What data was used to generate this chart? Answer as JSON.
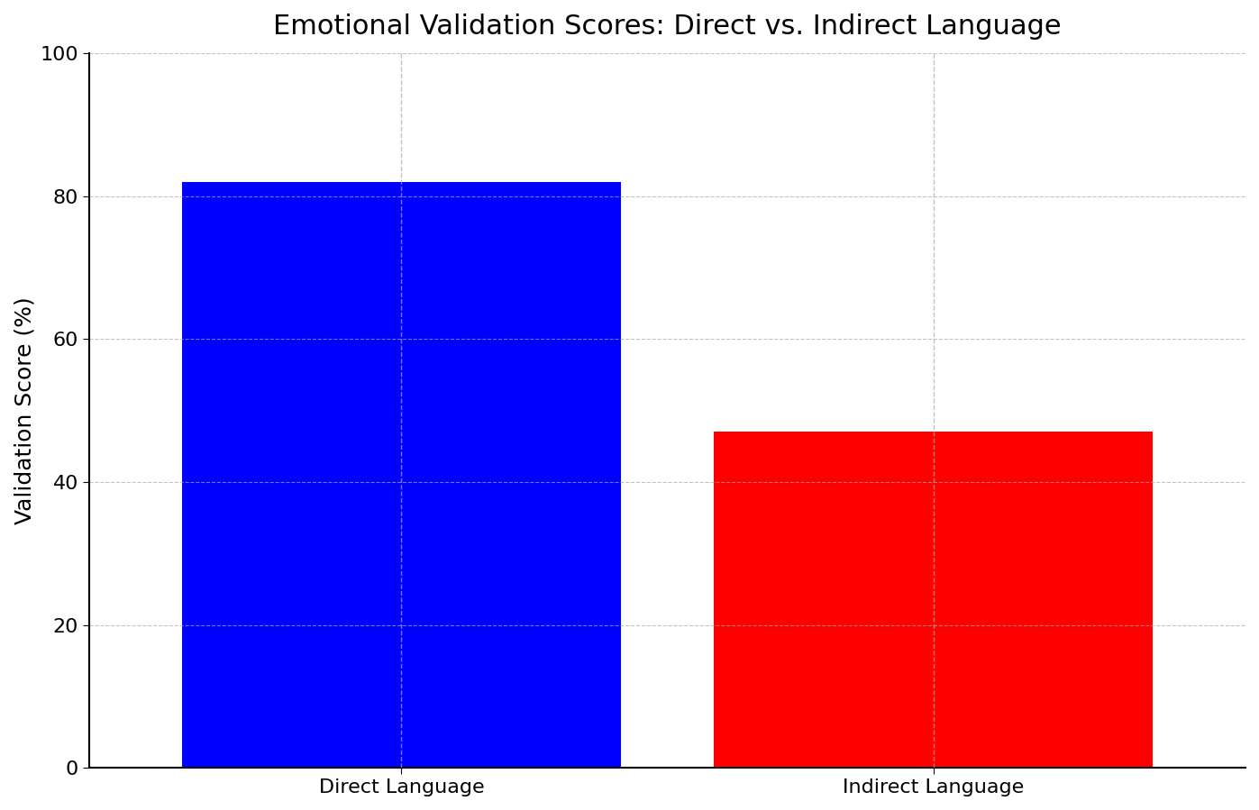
{
  "title": "Emotional Validation Scores: Direct vs. Indirect Language",
  "categories": [
    "Direct Language",
    "Indirect Language"
  ],
  "values": [
    82,
    47
  ],
  "bar_colors": [
    "#0000FF",
    "#FF0000"
  ],
  "ylabel": "Validation Score (%)",
  "ylim": [
    0,
    100
  ],
  "yticks": [
    0,
    20,
    40,
    60,
    80,
    100
  ],
  "grid_color": "#AAAAAA",
  "grid_linestyle": "--",
  "grid_alpha": 0.7,
  "title_fontsize": 22,
  "axis_label_fontsize": 18,
  "tick_fontsize": 16,
  "bar_width": 0.38,
  "background_color": "#FFFFFF",
  "spine_color": "#000000",
  "x_positions": [
    0.27,
    0.73
  ]
}
